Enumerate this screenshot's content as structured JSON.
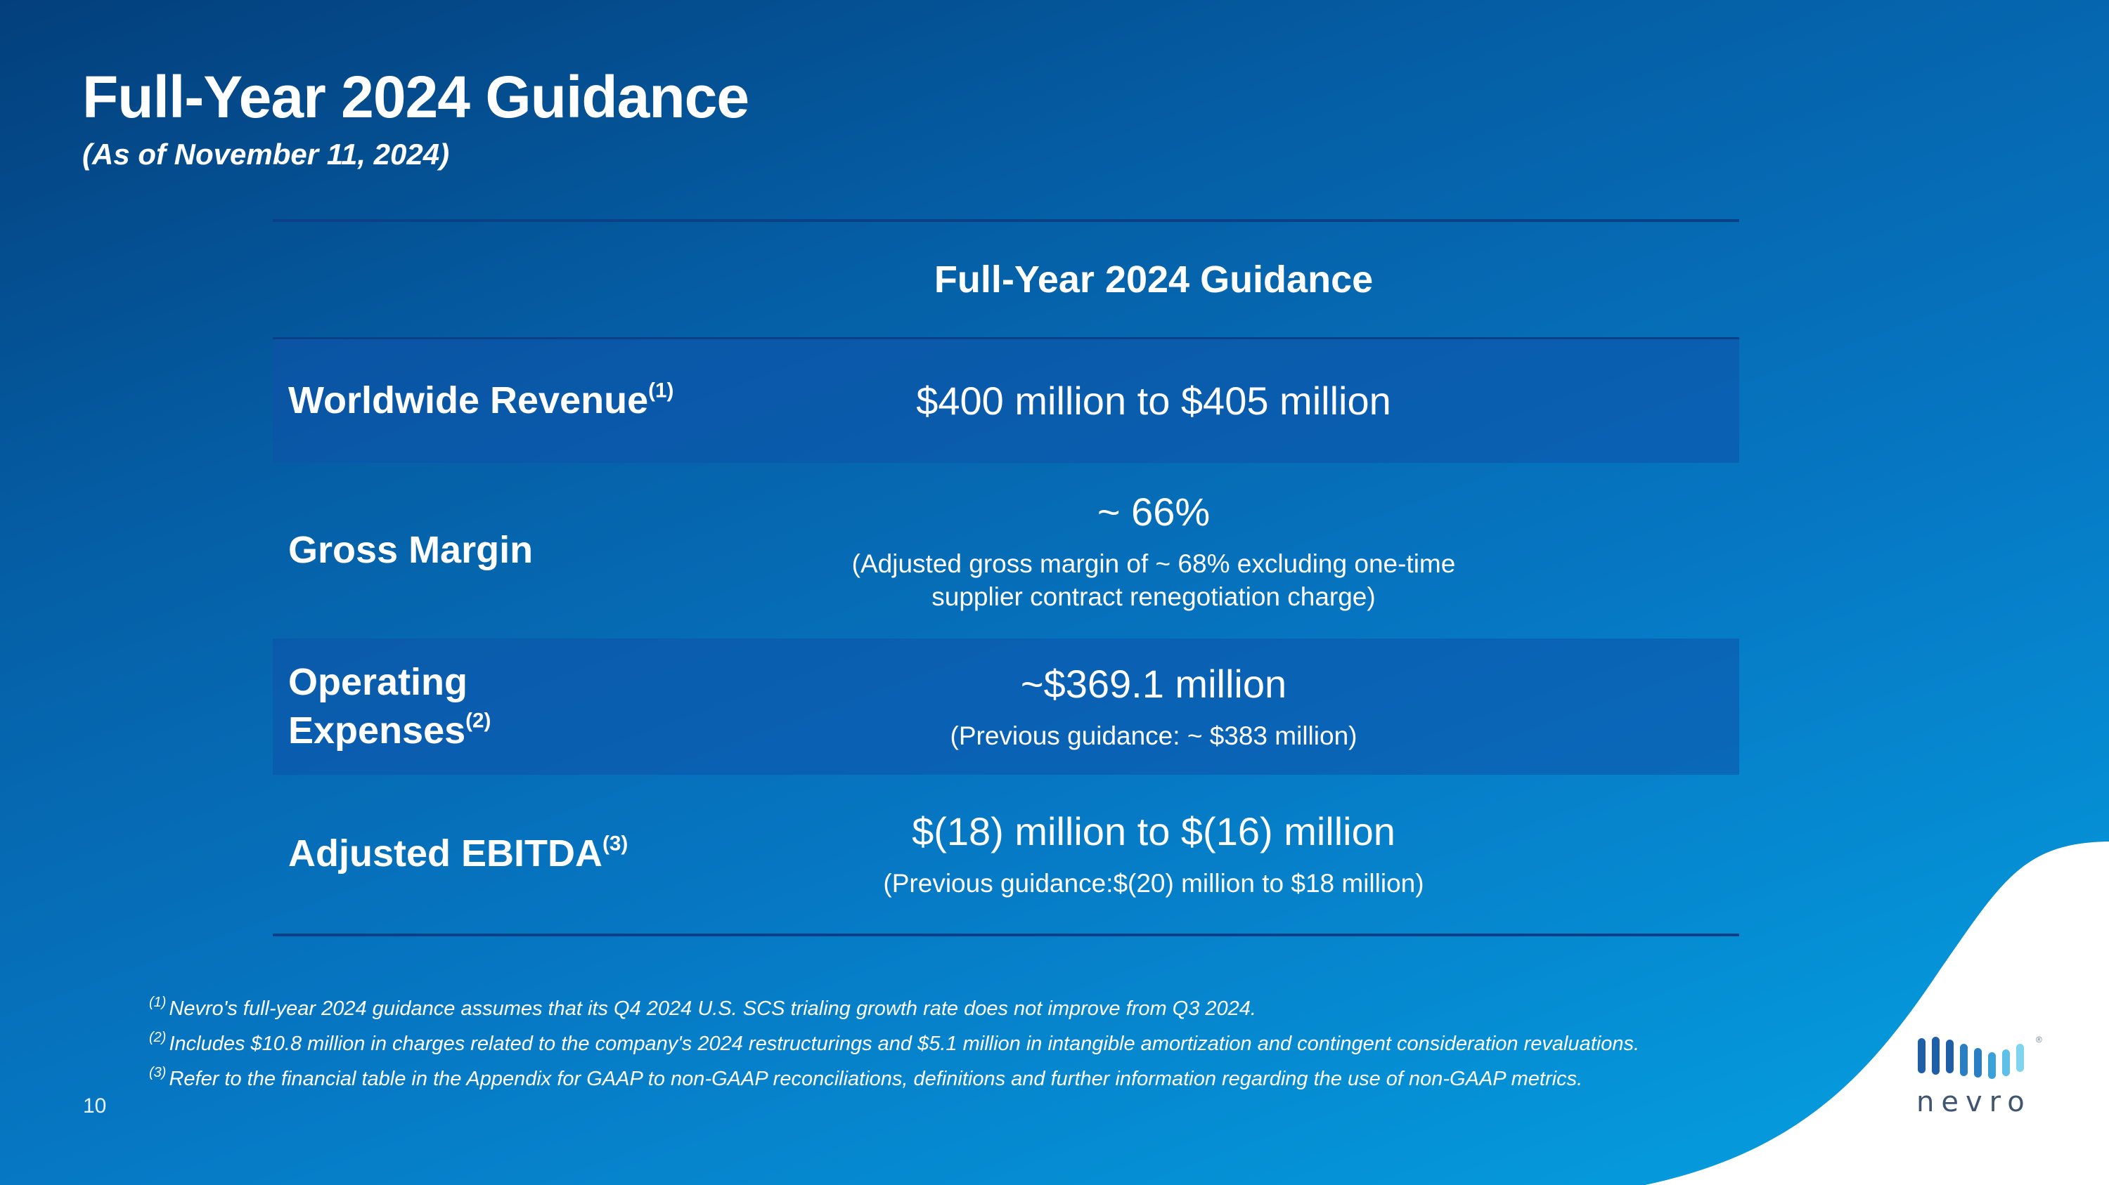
{
  "slide": {
    "title": "Full-Year 2024 Guidance",
    "subtitle": "(As of November 11, 2024)",
    "page_number": "10"
  },
  "table": {
    "column_header": "Full-Year 2024 Guidance",
    "rows": [
      {
        "label": "Worldwide Revenue",
        "label_note": "(1)",
        "value": "$400 million to $405 million"
      },
      {
        "label": "Gross Margin",
        "value": "~ 66%",
        "detail_line1": "(Adjusted gross margin of ~ 68% excluding one-time",
        "detail_line2": "supplier contract renegotiation charge)"
      },
      {
        "label_line1": "Operating",
        "label_line2": "Expenses",
        "label_note": "(2)",
        "value": "~$369.1 million",
        "detail": "(Previous guidance: ~ $383 million)"
      },
      {
        "label": "Adjusted EBITDA",
        "label_note": "(3)",
        "value": "$(18) million to $(16) million",
        "detail": "(Previous guidance:$(20) million to $18 million)"
      }
    ]
  },
  "footnotes": [
    {
      "marker": "(1)",
      "text": "Nevro's full-year 2024 guidance assumes that its Q4 2024 U.S. SCS trialing growth rate does not improve from Q3 2024."
    },
    {
      "marker": "(2)",
      "text": "Includes $10.8 million in charges related to the company's 2024 restructurings and $5.1 million in intangible amortization and contingent consideration revaluations."
    },
    {
      "marker": "(3)",
      "text": "Refer to the financial table in the Appendix for GAAP to non-GAAP reconciliations, definitions and further information regarding the use of non-GAAP metrics."
    }
  ],
  "logo": {
    "text": "nevro",
    "registered_mark": "®",
    "bar_colors": [
      "#1f5fa8",
      "#1f5fa8",
      "#1f5fa8",
      "#2a7fc4",
      "#2a7fc4",
      "#3aa0d8",
      "#5cc0e8",
      "#7fd4f0"
    ],
    "icon": "nevro-bars-logo"
  },
  "colors": {
    "background_dark": "#033f7c",
    "background_light": "#05a3e4",
    "white_wave": "#ffffff",
    "table_rule": "#0b3f86"
  }
}
